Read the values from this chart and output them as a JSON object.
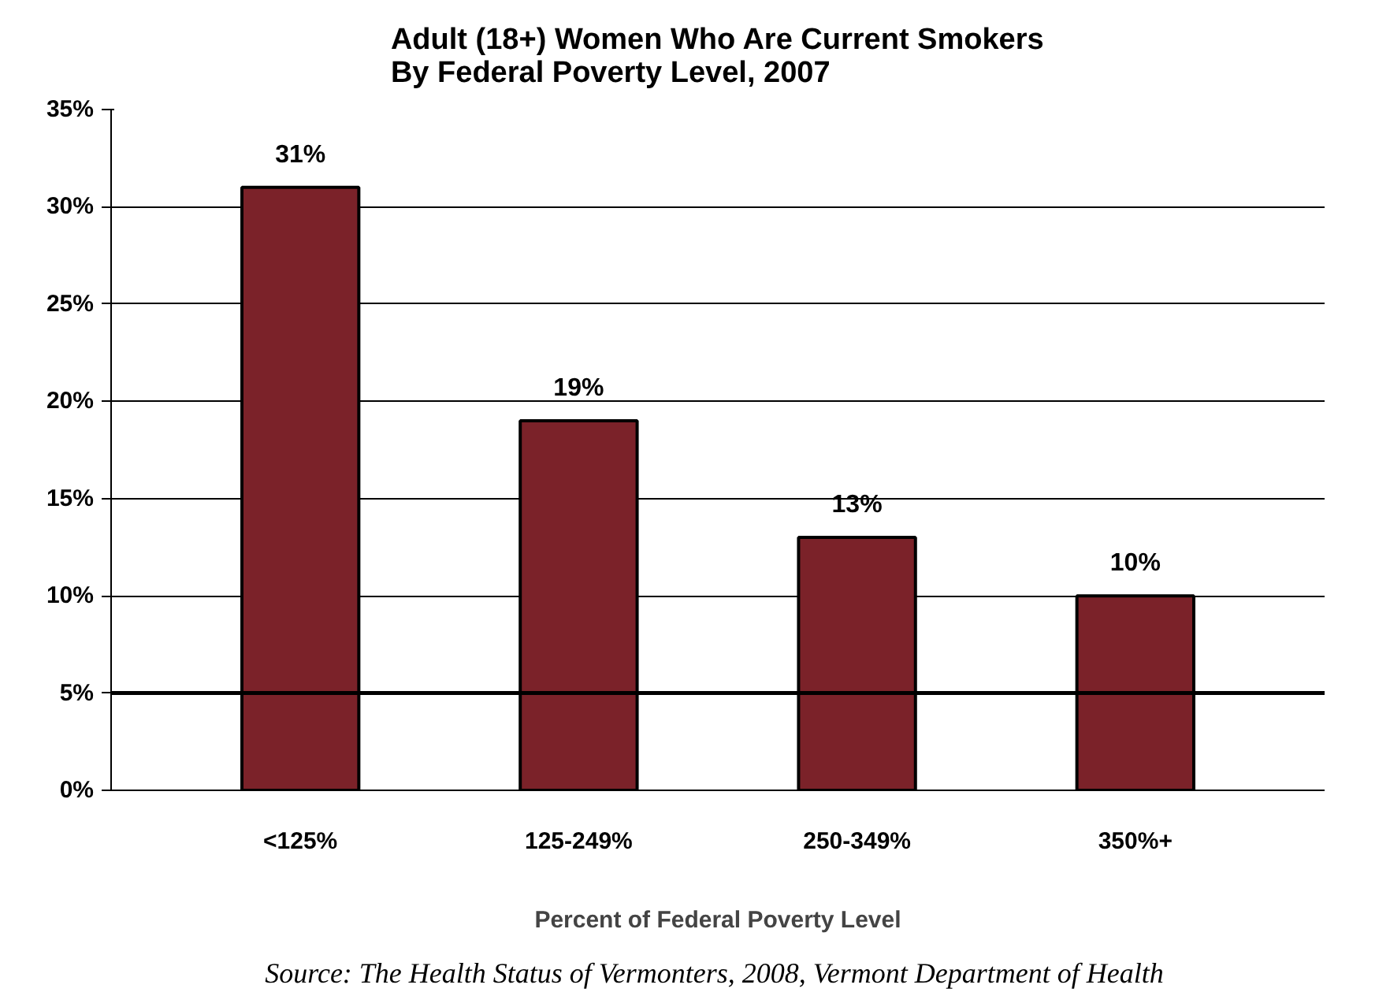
{
  "chart_data": {
    "type": "bar",
    "title": "Adult (18+) Women Who Are Current Smokers\nBy Federal Poverty Level, 2007",
    "xlabel": "Percent of Federal Poverty Level",
    "categories": [
      "<125%",
      "125-249%",
      "250-349%",
      "350%+"
    ],
    "values": [
      31,
      19,
      13,
      10
    ],
    "value_labels": [
      "31%",
      "19%",
      "13%",
      "10%"
    ],
    "color": "#7b2229",
    "ylim": [
      0,
      35
    ],
    "yticks": [
      {
        "value": 0,
        "label": "0%"
      },
      {
        "value": 5,
        "label": "5%"
      },
      {
        "value": 10,
        "label": "10%"
      },
      {
        "value": 15,
        "label": "15%"
      },
      {
        "value": 20,
        "label": "20%"
      },
      {
        "value": 25,
        "label": "25%"
      },
      {
        "value": 30,
        "label": "30%"
      },
      {
        "value": 35,
        "label": "35%"
      }
    ],
    "grid": "y",
    "ref_lines": [
      {
        "axis": "y",
        "value": 5,
        "color": "#000000"
      }
    ],
    "annotations": [
      "Source:  The Health Status of Vermonters, 2008, Vermont Department of Health"
    ]
  }
}
